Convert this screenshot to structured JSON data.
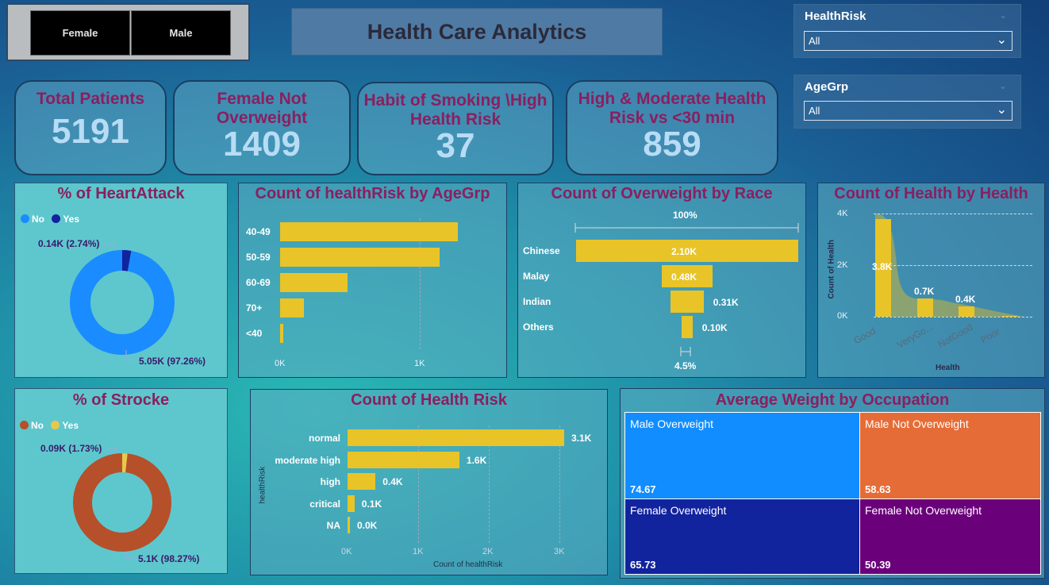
{
  "gender_slicer": {
    "female": "Female",
    "male": "Male"
  },
  "header": {
    "title": "Health Care Analytics"
  },
  "filters": {
    "health_risk": {
      "title": "HealthRisk",
      "value": "All"
    },
    "age_group": {
      "title": "AgeGrp",
      "value": "All"
    }
  },
  "kpis": {
    "total_patients": {
      "label": "Total Patients",
      "value": "5191"
    },
    "female_not_overweight": {
      "label1": "Female Not",
      "label2": "Overweight",
      "value": "1409"
    },
    "smoking_high_risk": {
      "label1": "Habit of Smoking \\High",
      "label2": "Health Risk",
      "value": "37"
    },
    "high_moderate_risk": {
      "label1": "High & Moderate Health",
      "label2": "Risk vs <30 min",
      "value": "859"
    }
  },
  "heartattack": {
    "title": "% of HeartAttack",
    "legend_no": "No",
    "legend_yes": "Yes",
    "yes_label": "0.14K (2.74%)",
    "no_label": "5.05K (97.26%)",
    "colors": {
      "no": "#1a8cff",
      "yes": "#12239e"
    },
    "chart_data": {
      "type": "pie",
      "slices": [
        {
          "name": "No",
          "value": 97.26
        },
        {
          "name": "Yes",
          "value": 2.74
        }
      ]
    }
  },
  "stroke": {
    "title": "% of Strocke",
    "legend_no": "No",
    "legend_yes": "Yes",
    "yes_label": "0.09K (1.73%)",
    "no_label": "5.1K (98.27%)",
    "colors": {
      "no": "#b5502a",
      "yes": "#e8c84a"
    },
    "chart_data": {
      "type": "pie",
      "slices": [
        {
          "name": "No",
          "value": 98.27
        },
        {
          "name": "Yes",
          "value": 1.73
        }
      ]
    }
  },
  "agegrp_chart": {
    "title": "Count of healthRisk by AgeGrp",
    "chart_data": {
      "type": "bar",
      "categories": [
        "40-49",
        "50-59",
        "60-69",
        "70+",
        "<40"
      ],
      "values": [
        1270,
        1140,
        480,
        170,
        25
      ],
      "xticks": [
        "0K",
        "1K"
      ],
      "xlim": [
        0,
        1600
      ]
    }
  },
  "race_chart": {
    "title": "Count of Overweight by Race",
    "top_label": "100%",
    "bottom_label": "4.5%",
    "chart_data": {
      "type": "bar",
      "categories": [
        "Chinese",
        "Malay",
        "Indian",
        "Others"
      ],
      "values": [
        2.1,
        0.48,
        0.31,
        0.1
      ],
      "value_labels": [
        "2.10K",
        "0.48K",
        "0.31K",
        "0.10K"
      ]
    }
  },
  "health_chart": {
    "title": "Count of Health by Health",
    "xlabel": "Health",
    "ylabel": "Count of Health",
    "chart_data": {
      "type": "bar",
      "categories": [
        "Good",
        "VeryGo...",
        "NotGood",
        "Poor"
      ],
      "values": [
        3800,
        700,
        400,
        20
      ],
      "value_labels": [
        "3.8K",
        "0.7K",
        "0.4K",
        ""
      ],
      "yticks": [
        "4K",
        "2K",
        "0K"
      ],
      "ylim": [
        0,
        4000
      ]
    }
  },
  "healthrisk_chart": {
    "title": "Count of Health Risk",
    "xlabel": "Count of healthRisk",
    "ylabel": "healthRisk",
    "chart_data": {
      "type": "bar",
      "categories": [
        "normal",
        "moderate high",
        "high",
        "critical",
        "NA"
      ],
      "values": [
        3100,
        1600,
        400,
        100,
        20
      ],
      "value_labels": [
        "3.1K",
        "1.6K",
        "0.4K",
        "0.1K",
        "0.0K"
      ],
      "xticks": [
        "0K",
        "1K",
        "2K",
        "3K"
      ],
      "xlim": [
        0,
        3100
      ]
    }
  },
  "treemap": {
    "title": "Average Weight by Occupation",
    "cells": [
      {
        "label": "Male Overweight",
        "value": "74.67",
        "color": "#118dff"
      },
      {
        "label": "Male Not Overweight",
        "value": "58.63",
        "color": "#e66c37"
      },
      {
        "label": "Female Overweight",
        "value": "65.73",
        "color": "#12239e"
      },
      {
        "label": "Female Not Overweight",
        "value": "50.39",
        "color": "#6b007b"
      }
    ]
  }
}
